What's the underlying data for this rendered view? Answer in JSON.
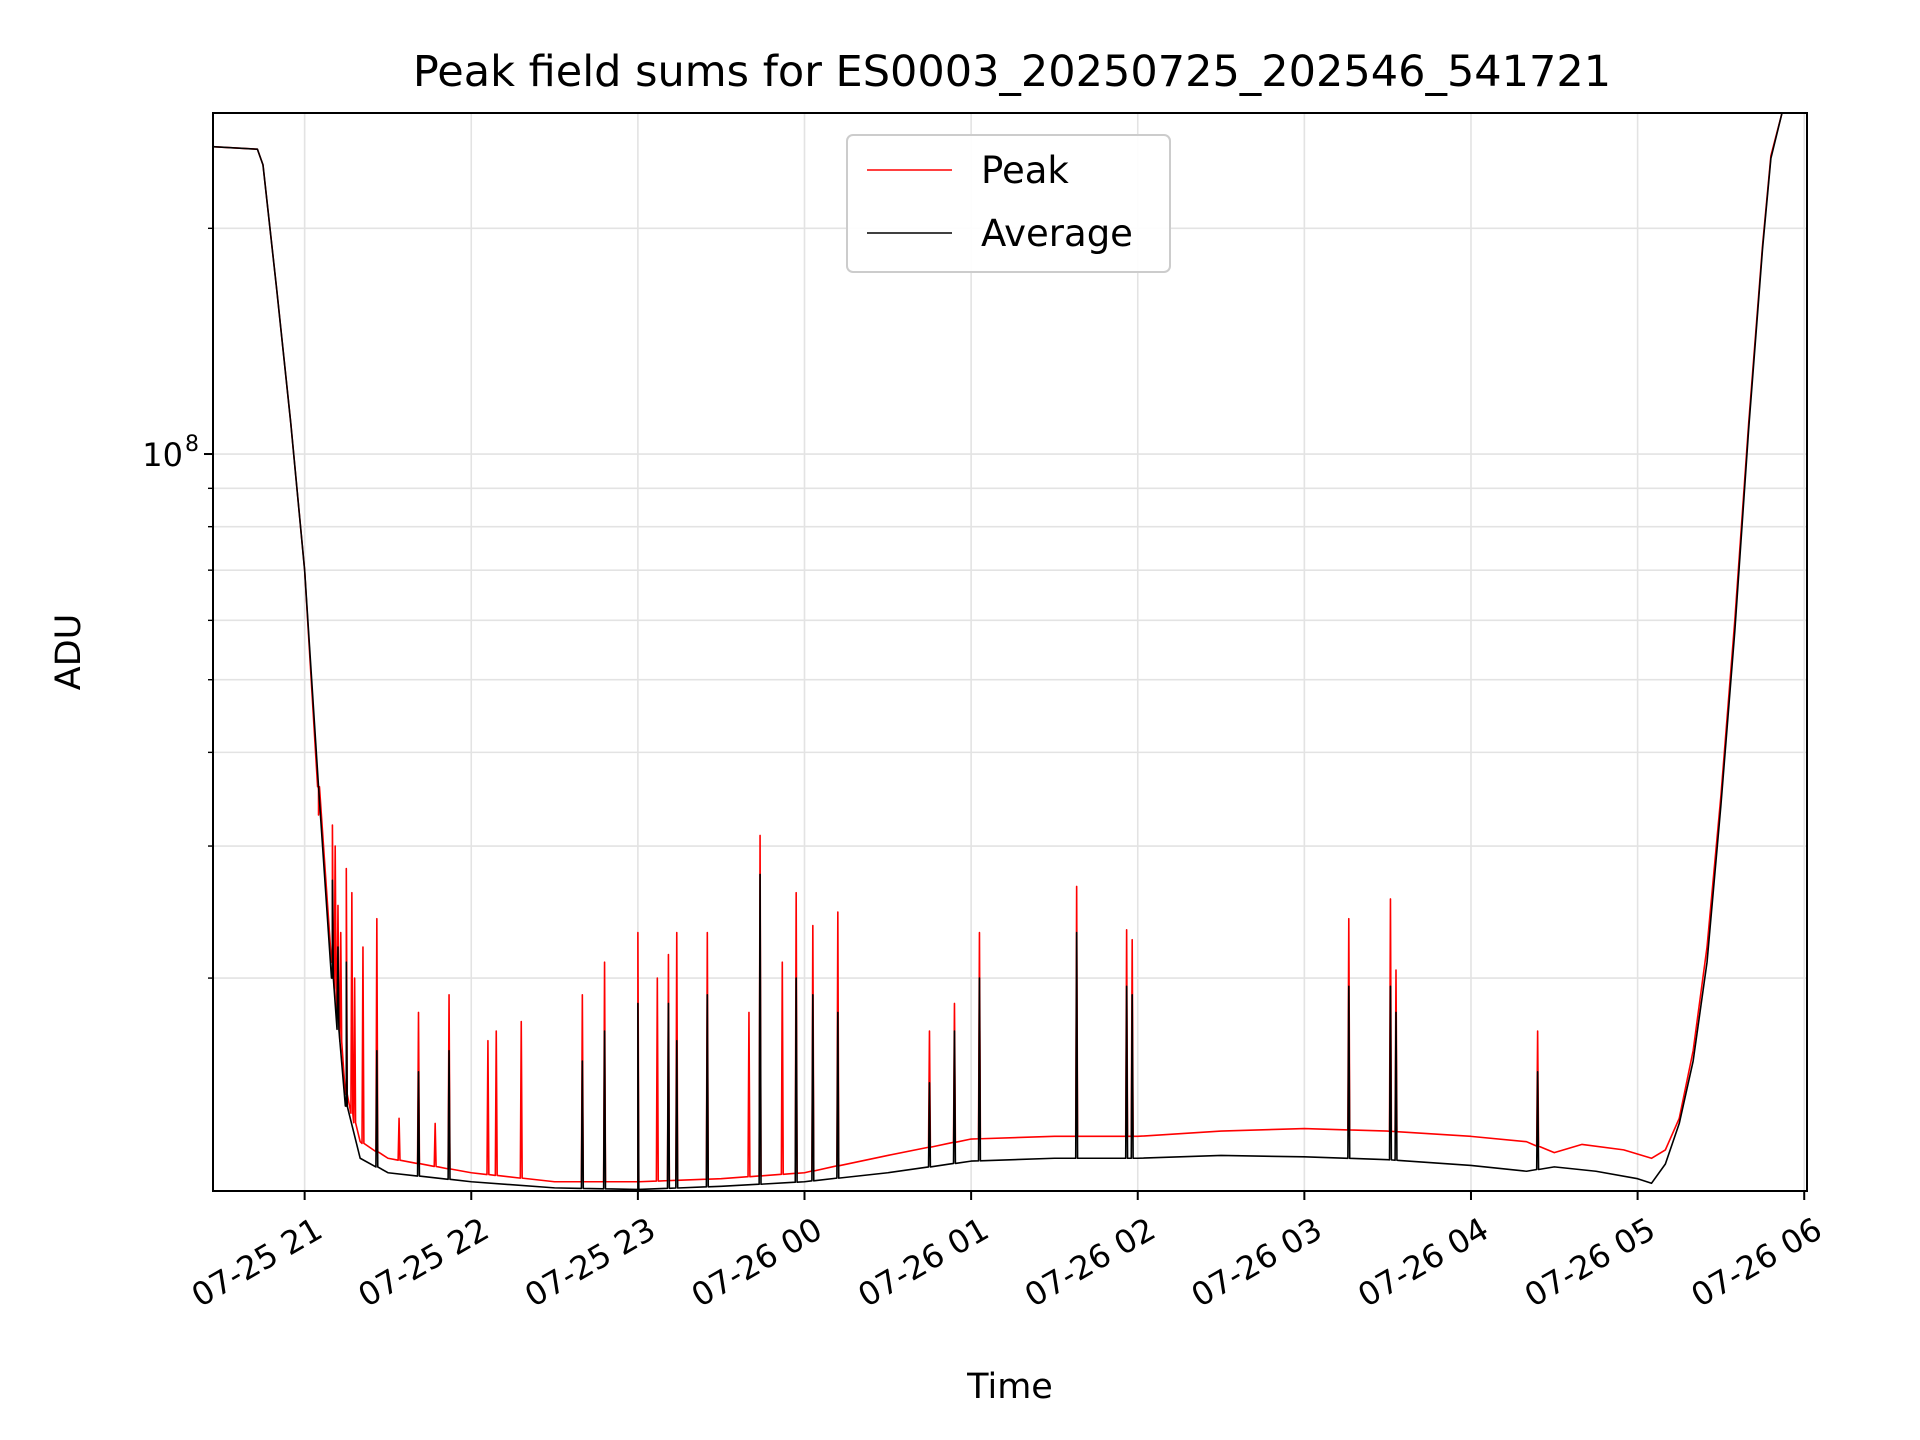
{
  "chart_data": {
    "type": "line",
    "title": "Peak field sums for ES0003_20250725_202546_541721",
    "xlabel": "Time",
    "ylabel": "ADU",
    "yscale": "log",
    "grid": true,
    "legend_position": "upper-center",
    "xlim": [
      "2025-07-25 20:27",
      "2025-07-26 06:01"
    ],
    "ylim": [
      10400000,
      285000000
    ],
    "x_ticks": [
      "07-25 21",
      "07-25 22",
      "07-25 23",
      "07-26 00",
      "07-26 01",
      "07-26 02",
      "07-26 03",
      "07-26 04",
      "07-26 05",
      "07-26 06"
    ],
    "x_tick_times": [
      "2025-07-25 21:00",
      "2025-07-25 22:00",
      "2025-07-25 23:00",
      "2025-07-26 00:00",
      "2025-07-26 01:00",
      "2025-07-26 02:00",
      "2025-07-26 03:00",
      "2025-07-26 04:00",
      "2025-07-26 05:00",
      "2025-07-26 06:00"
    ],
    "y_ticks": [
      {
        "value": 100000000,
        "mantissa": "10",
        "exponent": "8"
      }
    ],
    "y_minor_ticks": [
      20000000,
      30000000,
      40000000,
      50000000,
      60000000,
      70000000,
      80000000,
      90000000,
      200000000
    ],
    "series": [
      {
        "name": "Peak",
        "color": "#ff0000",
        "baseline": [
          [
            "2025-07-25 20:27",
            257000000
          ],
          [
            "2025-07-25 20:43",
            255000000
          ],
          [
            "2025-07-25 20:45",
            243000000
          ],
          [
            "2025-07-25 20:50",
            165000000
          ],
          [
            "2025-07-25 20:55",
            110000000
          ],
          [
            "2025-07-25 21:00",
            70000000
          ],
          [
            "2025-07-25 21:05",
            36000000
          ],
          [
            "2025-07-25 21:10",
            21000000
          ],
          [
            "2025-07-25 21:15",
            14000000
          ],
          [
            "2025-07-25 21:20",
            12100000
          ],
          [
            "2025-07-25 21:30",
            11500000
          ],
          [
            "2025-07-25 22:00",
            11000000
          ],
          [
            "2025-07-25 22:30",
            10700000
          ],
          [
            "2025-07-25 23:00",
            10700000
          ],
          [
            "2025-07-25 23:30",
            10800000
          ],
          [
            "2025-07-26 00:00",
            11000000
          ],
          [
            "2025-07-26 00:30",
            11600000
          ],
          [
            "2025-07-26 01:00",
            12200000
          ],
          [
            "2025-07-26 01:30",
            12300000
          ],
          [
            "2025-07-26 02:00",
            12300000
          ],
          [
            "2025-07-26 02:30",
            12500000
          ],
          [
            "2025-07-26 03:00",
            12600000
          ],
          [
            "2025-07-26 03:30",
            12500000
          ],
          [
            "2025-07-26 04:00",
            12300000
          ],
          [
            "2025-07-26 04:20",
            12100000
          ],
          [
            "2025-07-26 04:30",
            11700000
          ],
          [
            "2025-07-26 04:40",
            12000000
          ],
          [
            "2025-07-26 04:55",
            11800000
          ],
          [
            "2025-07-26 05:05",
            11500000
          ],
          [
            "2025-07-26 05:10",
            11800000
          ],
          [
            "2025-07-26 05:15",
            13000000
          ],
          [
            "2025-07-26 05:20",
            16000000
          ],
          [
            "2025-07-26 05:25",
            22000000
          ],
          [
            "2025-07-26 05:30",
            35000000
          ],
          [
            "2025-07-26 05:35",
            60000000
          ],
          [
            "2025-07-26 05:40",
            110000000
          ],
          [
            "2025-07-26 05:45",
            190000000
          ],
          [
            "2025-07-26 05:48",
            250000000
          ],
          [
            "2025-07-26 05:52",
            285000000
          ],
          [
            "2025-07-26 06:01",
            285000000
          ]
        ],
        "spikes": [
          [
            "2025-07-25 21:05",
            33000000
          ],
          [
            "2025-07-25 21:10",
            32000000
          ],
          [
            "2025-07-25 21:11",
            30000000
          ],
          [
            "2025-07-25 21:12",
            25000000
          ],
          [
            "2025-07-25 21:13",
            23000000
          ],
          [
            "2025-07-25 21:15",
            28000000
          ],
          [
            "2025-07-25 21:17",
            26000000
          ],
          [
            "2025-07-25 21:18",
            20000000
          ],
          [
            "2025-07-25 21:21",
            22000000
          ],
          [
            "2025-07-25 21:26",
            24000000
          ],
          [
            "2025-07-25 21:34",
            13000000
          ],
          [
            "2025-07-25 21:41",
            18000000
          ],
          [
            "2025-07-25 21:47",
            12800000
          ],
          [
            "2025-07-25 21:52",
            19000000
          ],
          [
            "2025-07-25 22:06",
            16500000
          ],
          [
            "2025-07-25 22:09",
            17000000
          ],
          [
            "2025-07-25 22:18",
            17500000
          ],
          [
            "2025-07-25 22:40",
            19000000
          ],
          [
            "2025-07-25 22:48",
            21000000
          ],
          [
            "2025-07-25 23:00",
            23000000
          ],
          [
            "2025-07-25 23:07",
            20000000
          ],
          [
            "2025-07-25 23:11",
            21500000
          ],
          [
            "2025-07-25 23:14",
            23000000
          ],
          [
            "2025-07-25 23:25",
            23000000
          ],
          [
            "2025-07-25 23:40",
            18000000
          ],
          [
            "2025-07-25 23:44",
            31000000
          ],
          [
            "2025-07-25 23:52",
            21000000
          ],
          [
            "2025-07-25 23:57",
            26000000
          ],
          [
            "2025-07-26 00:03",
            23500000
          ],
          [
            "2025-07-26 00:12",
            24500000
          ],
          [
            "2025-07-26 00:45",
            17000000
          ],
          [
            "2025-07-26 00:54",
            18500000
          ],
          [
            "2025-07-26 01:03",
            23000000
          ],
          [
            "2025-07-26 01:38",
            26500000
          ],
          [
            "2025-07-26 01:56",
            23200000
          ],
          [
            "2025-07-26 01:58",
            22500000
          ],
          [
            "2025-07-26 03:16",
            24000000
          ],
          [
            "2025-07-26 03:31",
            25500000
          ],
          [
            "2025-07-26 03:33",
            20500000
          ],
          [
            "2025-07-26 04:24",
            17000000
          ]
        ]
      },
      {
        "name": "Average",
        "color": "#000000",
        "baseline": [
          [
            "2025-07-25 20:27",
            257000000
          ],
          [
            "2025-07-25 20:43",
            255000000
          ],
          [
            "2025-07-25 20:45",
            243000000
          ],
          [
            "2025-07-25 20:50",
            165000000
          ],
          [
            "2025-07-25 20:55",
            110000000
          ],
          [
            "2025-07-25 21:00",
            70000000
          ],
          [
            "2025-07-25 21:05",
            36000000
          ],
          [
            "2025-07-25 21:10",
            20000000
          ],
          [
            "2025-07-25 21:15",
            13500000
          ],
          [
            "2025-07-25 21:20",
            11500000
          ],
          [
            "2025-07-25 21:30",
            11000000
          ],
          [
            "2025-07-25 22:00",
            10700000
          ],
          [
            "2025-07-25 22:30",
            10500000
          ],
          [
            "2025-07-25 23:00",
            10450000
          ],
          [
            "2025-07-25 23:30",
            10550000
          ],
          [
            "2025-07-26 00:00",
            10700000
          ],
          [
            "2025-07-26 00:30",
            11000000
          ],
          [
            "2025-07-26 01:00",
            11400000
          ],
          [
            "2025-07-26 01:30",
            11500000
          ],
          [
            "2025-07-26 02:00",
            11500000
          ],
          [
            "2025-07-26 02:30",
            11600000
          ],
          [
            "2025-07-26 03:00",
            11550000
          ],
          [
            "2025-07-26 03:30",
            11450000
          ],
          [
            "2025-07-26 04:00",
            11250000
          ],
          [
            "2025-07-26 04:20",
            11050000
          ],
          [
            "2025-07-26 04:30",
            11200000
          ],
          [
            "2025-07-26 04:45",
            11050000
          ],
          [
            "2025-07-26 05:00",
            10800000
          ],
          [
            "2025-07-26 05:05",
            10650000
          ],
          [
            "2025-07-26 05:10",
            11300000
          ],
          [
            "2025-07-26 05:15",
            12800000
          ],
          [
            "2025-07-26 05:20",
            15500000
          ],
          [
            "2025-07-26 05:25",
            21000000
          ],
          [
            "2025-07-26 05:30",
            34000000
          ],
          [
            "2025-07-26 05:35",
            58000000
          ],
          [
            "2025-07-26 05:40",
            108000000
          ],
          [
            "2025-07-26 05:45",
            188000000
          ],
          [
            "2025-07-26 05:48",
            248000000
          ],
          [
            "2025-07-26 05:52",
            285000000
          ],
          [
            "2025-07-26 06:01",
            285000000
          ]
        ],
        "spikes": [
          [
            "2025-07-25 21:10",
            27000000
          ],
          [
            "2025-07-25 21:12",
            22000000
          ],
          [
            "2025-07-25 21:15",
            21000000
          ],
          [
            "2025-07-25 21:26",
            16000000
          ],
          [
            "2025-07-25 21:41",
            15000000
          ],
          [
            "2025-07-25 21:52",
            16000000
          ],
          [
            "2025-07-25 22:40",
            15500000
          ],
          [
            "2025-07-25 22:48",
            17000000
          ],
          [
            "2025-07-25 23:00",
            18500000
          ],
          [
            "2025-07-25 23:11",
            18500000
          ],
          [
            "2025-07-25 23:14",
            16500000
          ],
          [
            "2025-07-25 23:25",
            19000000
          ],
          [
            "2025-07-25 23:44",
            27500000
          ],
          [
            "2025-07-25 23:57",
            20000000
          ],
          [
            "2025-07-26 00:03",
            19000000
          ],
          [
            "2025-07-26 00:12",
            18000000
          ],
          [
            "2025-07-26 00:45",
            14500000
          ],
          [
            "2025-07-26 00:54",
            17000000
          ],
          [
            "2025-07-26 01:03",
            20000000
          ],
          [
            "2025-07-26 01:38",
            23000000
          ],
          [
            "2025-07-26 01:56",
            19500000
          ],
          [
            "2025-07-26 01:58",
            19000000
          ],
          [
            "2025-07-26 03:16",
            19500000
          ],
          [
            "2025-07-26 03:31",
            19500000
          ],
          [
            "2025-07-26 03:33",
            18000000
          ],
          [
            "2025-07-26 04:24",
            15000000
          ]
        ]
      }
    ]
  }
}
